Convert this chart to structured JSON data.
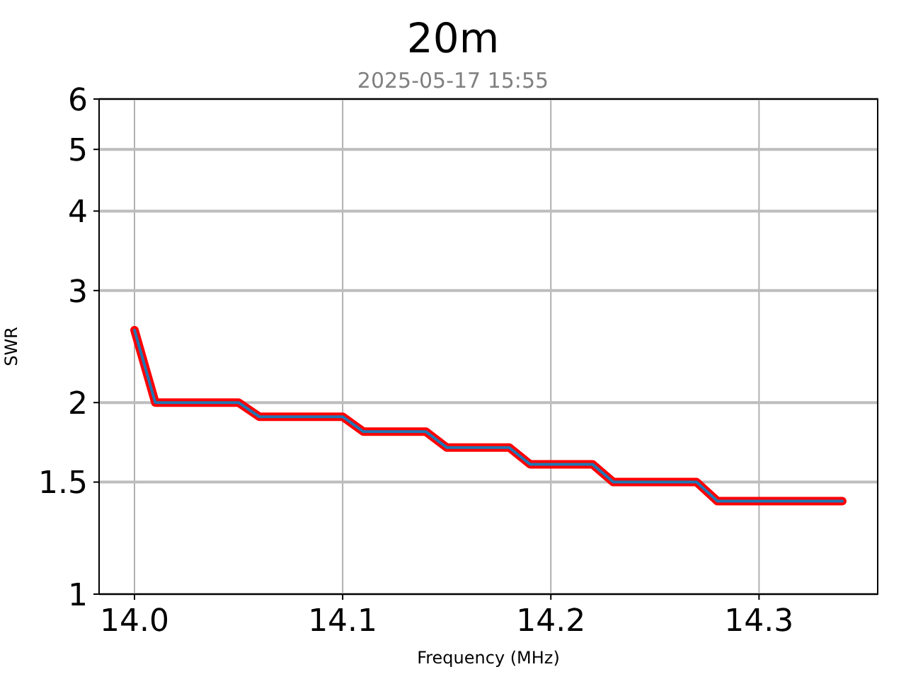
{
  "chart_data": {
    "type": "line",
    "title": "20m",
    "subtitle": "2025-05-17 15:55",
    "xlabel": "Frequency (MHz)",
    "ylabel": "SWR",
    "x": [
      14.0,
      14.01,
      14.05,
      14.06,
      14.1,
      14.11,
      14.14,
      14.15,
      14.18,
      14.19,
      14.22,
      14.23,
      14.27,
      14.28,
      14.34
    ],
    "series": [
      {
        "color": "#ff0000",
        "values": [
          2.6,
          2.0,
          2.0,
          1.9,
          1.9,
          1.8,
          1.8,
          1.7,
          1.7,
          1.6,
          1.6,
          1.5,
          1.5,
          1.4,
          1.4
        ]
      },
      {
        "color": "#1f77b4",
        "values": [
          2.6,
          2.0,
          2.0,
          1.9,
          1.9,
          1.8,
          1.8,
          1.7,
          1.7,
          1.6,
          1.6,
          1.5,
          1.5,
          1.4,
          1.4
        ]
      }
    ],
    "xlim": [
      13.983,
      14.357
    ],
    "xticks": [
      {
        "value": 14.0,
        "label": "14.0"
      },
      14.1,
      14.2,
      14.3
    ],
    "ylim": [
      1,
      6
    ],
    "yticks": [
      1,
      1.5,
      2,
      3,
      4,
      5,
      6
    ],
    "log": true,
    "grid": true
  }
}
